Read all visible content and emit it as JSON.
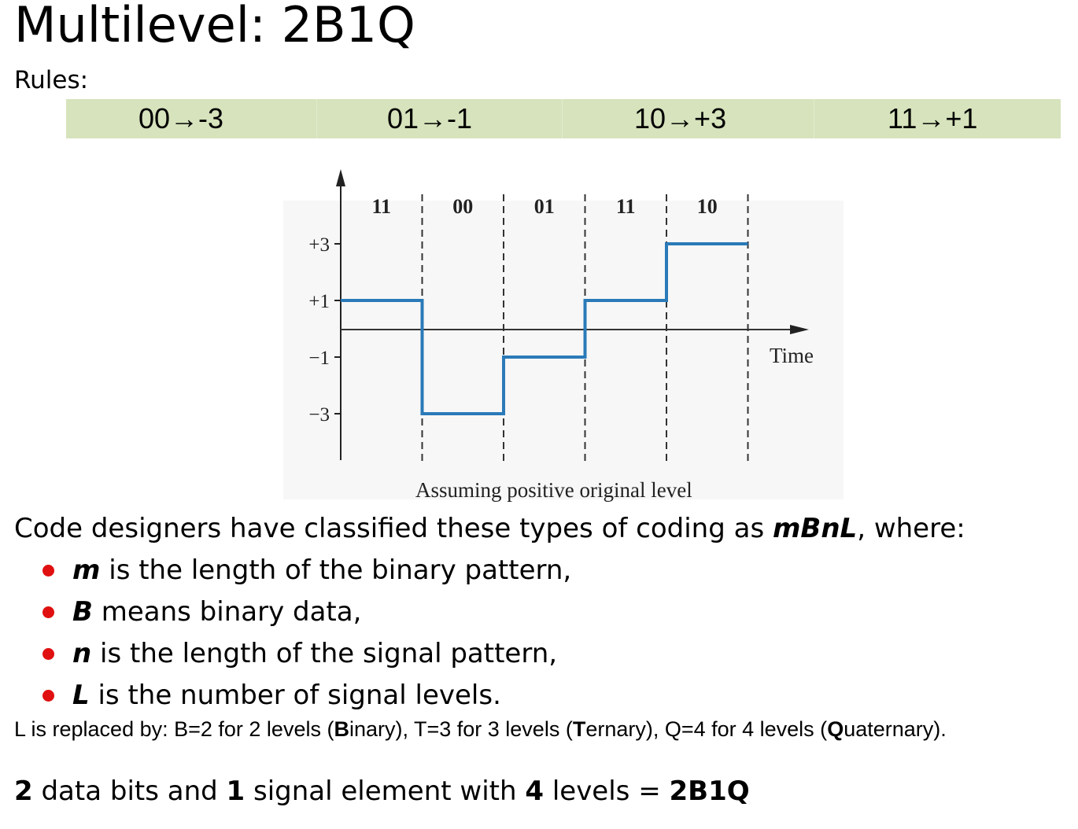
{
  "title": "Multilevel: 2B1Q",
  "rules_label": "Rules:",
  "rules": [
    {
      "bits": "00",
      "arrow": "→",
      "level": "-3"
    },
    {
      "bits": "01",
      "arrow": "→",
      "level": "-1"
    },
    {
      "bits": "10",
      "arrow": "→",
      "level": "+3"
    },
    {
      "bits": "11",
      "arrow": "→",
      "level": "+1"
    }
  ],
  "figure": {
    "y_ticks": [
      "+3",
      "+1",
      "−1",
      "−3"
    ],
    "x_label": "Time",
    "caption": "Assuming positive original level",
    "bit_groups": [
      "11",
      "00",
      "01",
      "11",
      "10"
    ],
    "signal_levels": [
      1,
      -3,
      -1,
      1,
      3
    ],
    "signal_color": "#2a7ab8"
  },
  "paragraph": {
    "before": "Code designers have classified these types of coding as ",
    "term": "mBnL",
    "after": ", where:"
  },
  "bullets": [
    {
      "term": "m",
      "text": " is the length of the binary pattern,"
    },
    {
      "term": "B",
      "text": " means binary data,"
    },
    {
      "term": "n",
      "text": " is the length of the signal pattern,"
    },
    {
      "term": "L",
      "text": " is the number of signal levels."
    }
  ],
  "note": {
    "p1": "L is replaced  by: B=2 for 2 levels (",
    "b1": "B",
    "p2": "inary), T=3 for 3 levels (",
    "b2": "T",
    "p3": "ernary), Q=4 for 4 levels (",
    "b3": "Q",
    "p4": "uaternary)."
  },
  "summary": {
    "n1": "2",
    "t1": " data bits and ",
    "n2": "1",
    "t2": " signal element with ",
    "n3": "4",
    "t3": " levels = ",
    "code": "2B1Q"
  },
  "colors": {
    "rules_bar": "#d6e3bc",
    "bullet": "#e01010"
  }
}
